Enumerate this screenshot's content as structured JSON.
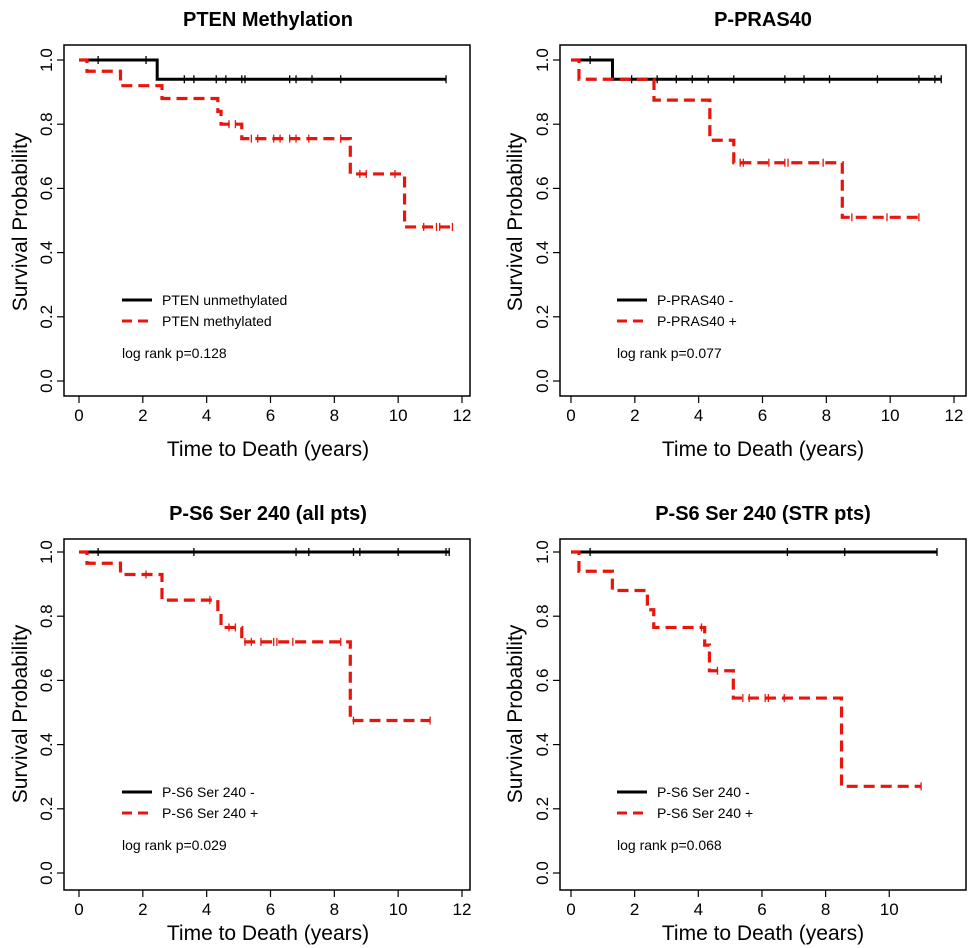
{
  "chart_data": [
    {
      "type": "line",
      "subtype": "kaplan-meier",
      "title": "PTEN Methylation",
      "xlabel": "Time to Death (years)",
      "ylabel": "Survival Probability",
      "xlim": [
        0,
        12
      ],
      "ylim": [
        0,
        1
      ],
      "xticks": [
        "0",
        "2",
        "4",
        "6",
        "8",
        "10",
        "12"
      ],
      "yticks": [
        "0.0",
        "0.2",
        "0.4",
        "0.6",
        "0.8",
        "1.0"
      ],
      "legend_position": "lower-left",
      "annotation": "log rank p=0.128",
      "series": [
        {
          "name": "PTEN unmethylated",
          "color": "#000000",
          "style": "solid",
          "steps": [
            [
              0,
              1.0
            ],
            [
              2.45,
              0.94
            ],
            [
              11.5,
              0.94
            ]
          ],
          "censored": [
            [
              0.6,
              1.0
            ],
            [
              2.1,
              1.0
            ],
            [
              3.3,
              0.94
            ],
            [
              3.6,
              0.94
            ],
            [
              4.3,
              0.94
            ],
            [
              4.6,
              0.94
            ],
            [
              5.1,
              0.94
            ],
            [
              5.2,
              0.94
            ],
            [
              6.6,
              0.94
            ],
            [
              6.8,
              0.94
            ],
            [
              7.3,
              0.94
            ],
            [
              8.2,
              0.94
            ],
            [
              11.5,
              0.94
            ]
          ]
        },
        {
          "name": "PTEN methylated",
          "color": "#e8150d",
          "style": "dashed",
          "steps": [
            [
              0,
              1.0
            ],
            [
              0.25,
              0.965
            ],
            [
              1.3,
              0.92
            ],
            [
              2.6,
              0.88
            ],
            [
              4.35,
              0.84
            ],
            [
              4.45,
              0.8
            ],
            [
              5.1,
              0.755
            ],
            [
              8.5,
              0.645
            ],
            [
              10.2,
              0.48
            ],
            [
              11.7,
              0.48
            ]
          ],
          "censored": [
            [
              4.7,
              0.8
            ],
            [
              4.9,
              0.8
            ],
            [
              5.4,
              0.755
            ],
            [
              5.6,
              0.755
            ],
            [
              6.1,
              0.755
            ],
            [
              6.3,
              0.755
            ],
            [
              6.6,
              0.755
            ],
            [
              6.8,
              0.755
            ],
            [
              7.2,
              0.755
            ],
            [
              8.2,
              0.755
            ],
            [
              8.8,
              0.645
            ],
            [
              9.0,
              0.645
            ],
            [
              9.9,
              0.645
            ],
            [
              10.8,
              0.48
            ],
            [
              11.2,
              0.48
            ],
            [
              11.3,
              0.48
            ],
            [
              11.7,
              0.48
            ]
          ]
        }
      ]
    },
    {
      "type": "line",
      "subtype": "kaplan-meier",
      "title": "P-PRAS40",
      "xlabel": "Time to Death (years)",
      "ylabel": "Survival Probability",
      "xlim": [
        0,
        12
      ],
      "ylim": [
        0,
        1
      ],
      "xticks": [
        "0",
        "2",
        "4",
        "6",
        "8",
        "10",
        "12"
      ],
      "yticks": [
        "0.0",
        "0.2",
        "0.4",
        "0.6",
        "0.8",
        "1.0"
      ],
      "legend_position": "lower-left",
      "annotation": "log rank p=0.077",
      "series": [
        {
          "name": "P-PRAS40 -",
          "color": "#000000",
          "style": "solid",
          "steps": [
            [
              0,
              1.0
            ],
            [
              1.3,
              0.94
            ],
            [
              11.6,
              0.94
            ]
          ],
          "censored": [
            [
              0.6,
              1.0
            ],
            [
              1.9,
              0.94
            ],
            [
              2.7,
              0.94
            ],
            [
              3.3,
              0.94
            ],
            [
              3.8,
              0.94
            ],
            [
              4.3,
              0.94
            ],
            [
              5.1,
              0.94
            ],
            [
              6.7,
              0.94
            ],
            [
              7.3,
              0.94
            ],
            [
              8.1,
              0.94
            ],
            [
              9.6,
              0.94
            ],
            [
              10.9,
              0.94
            ],
            [
              11.4,
              0.94
            ],
            [
              11.6,
              0.94
            ]
          ]
        },
        {
          "name": "P-PRAS40 +",
          "color": "#e8150d",
          "style": "dashed",
          "steps": [
            [
              0,
              1.0
            ],
            [
              0.25,
              0.94
            ],
            [
              2.6,
              0.875
            ],
            [
              4.35,
              0.75
            ],
            [
              5.1,
              0.68
            ],
            [
              8.5,
              0.51
            ],
            [
              11.0,
              0.51
            ]
          ],
          "censored": [
            [
              5.3,
              0.68
            ],
            [
              5.4,
              0.68
            ],
            [
              6.2,
              0.68
            ],
            [
              6.7,
              0.68
            ],
            [
              6.8,
              0.68
            ],
            [
              7.9,
              0.68
            ],
            [
              8.8,
              0.51
            ],
            [
              9.9,
              0.51
            ],
            [
              10.9,
              0.51
            ]
          ]
        }
      ]
    },
    {
      "type": "line",
      "subtype": "kaplan-meier",
      "title": "P-S6 Ser 240 (all pts)",
      "xlabel": "Time to Death (years)",
      "ylabel": "Survival Probability",
      "xlim": [
        0,
        12
      ],
      "ylim": [
        0,
        1
      ],
      "xticks": [
        "0",
        "2",
        "4",
        "6",
        "8",
        "10",
        "12"
      ],
      "yticks": [
        "0.0",
        "0.2",
        "0.4",
        "0.6",
        "0.8",
        "1.0"
      ],
      "legend_position": "lower-left",
      "annotation": "log rank p=0.029",
      "series": [
        {
          "name": "P-S6 Ser 240 -",
          "color": "#000000",
          "style": "solid",
          "steps": [
            [
              0,
              1.0
            ],
            [
              11.6,
              1.0
            ]
          ],
          "censored": [
            [
              0.6,
              1.0
            ],
            [
              3.6,
              1.0
            ],
            [
              6.8,
              1.0
            ],
            [
              7.2,
              1.0
            ],
            [
              8.6,
              1.0
            ],
            [
              8.8,
              1.0
            ],
            [
              10.0,
              1.0
            ],
            [
              11.5,
              1.0
            ],
            [
              11.6,
              1.0
            ]
          ]
        },
        {
          "name": "P-S6 Ser 240 +",
          "color": "#e8150d",
          "style": "dashed",
          "steps": [
            [
              0,
              1.0
            ],
            [
              0.25,
              0.965
            ],
            [
              1.3,
              0.93
            ],
            [
              2.6,
              0.85
            ],
            [
              4.35,
              0.81
            ],
            [
              4.45,
              0.765
            ],
            [
              5.1,
              0.72
            ],
            [
              8.5,
              0.475
            ],
            [
              11.0,
              0.475
            ]
          ],
          "censored": [
            [
              2.1,
              0.93
            ],
            [
              4.1,
              0.85
            ],
            [
              4.7,
              0.765
            ],
            [
              4.9,
              0.765
            ],
            [
              5.2,
              0.72
            ],
            [
              5.4,
              0.72
            ],
            [
              5.7,
              0.72
            ],
            [
              6.1,
              0.72
            ],
            [
              6.2,
              0.72
            ],
            [
              6.7,
              0.72
            ],
            [
              8.2,
              0.72
            ],
            [
              8.6,
              0.475
            ],
            [
              11.0,
              0.475
            ]
          ]
        }
      ]
    },
    {
      "type": "line",
      "subtype": "kaplan-meier",
      "title": "P-S6 Ser 240 (STR pts)",
      "xlabel": "Time to Death (years)",
      "ylabel": "Survival Probability",
      "xlim": [
        0,
        11.5
      ],
      "ylim": [
        0,
        1
      ],
      "xticks": [
        "0",
        "2",
        "4",
        "6",
        "8",
        "10"
      ],
      "yticks": [
        "0.0",
        "0.2",
        "0.4",
        "0.6",
        "0.8",
        "1.0"
      ],
      "legend_position": "lower-left",
      "annotation": "log rank p=0.068",
      "series": [
        {
          "name": "P-S6 Ser 240 -",
          "color": "#000000",
          "style": "solid",
          "steps": [
            [
              0,
              1.0
            ],
            [
              11.5,
              1.0
            ]
          ],
          "censored": [
            [
              0.6,
              1.0
            ],
            [
              6.8,
              1.0
            ],
            [
              8.6,
              1.0
            ],
            [
              11.5,
              1.0
            ]
          ]
        },
        {
          "name": "P-S6 Ser 240 +",
          "color": "#e8150d",
          "style": "dashed",
          "steps": [
            [
              0,
              1.0
            ],
            [
              0.25,
              0.94
            ],
            [
              1.3,
              0.88
            ],
            [
              2.4,
              0.82
            ],
            [
              2.6,
              0.765
            ],
            [
              4.2,
              0.71
            ],
            [
              4.35,
              0.63
            ],
            [
              5.1,
              0.545
            ],
            [
              8.5,
              0.27
            ],
            [
              11.0,
              0.27
            ]
          ],
          "censored": [
            [
              4.1,
              0.765
            ],
            [
              4.6,
              0.63
            ],
            [
              5.4,
              0.545
            ],
            [
              5.6,
              0.545
            ],
            [
              6.1,
              0.545
            ],
            [
              6.2,
              0.545
            ],
            [
              6.7,
              0.545
            ],
            [
              11.0,
              0.27
            ]
          ]
        }
      ]
    }
  ]
}
